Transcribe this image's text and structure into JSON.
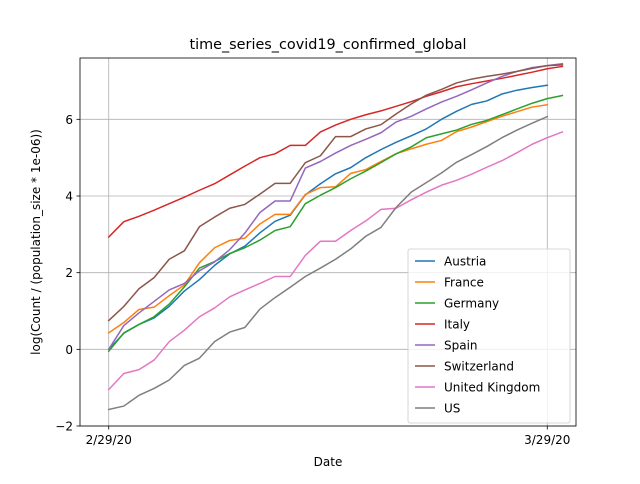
{
  "chart_data": {
    "type": "line",
    "title": "time_series_covid19_confirmed_global",
    "xlabel": "Date",
    "ylabel": "log(Count /  (population_size * 1e-06))",
    "x_tick_labels": [
      {
        "day": 0,
        "label": "2/29/20"
      },
      {
        "day": 29,
        "label": "3/29/20"
      }
    ],
    "xlim": [
      -1.9,
      30.9
    ],
    "ylim": [
      -2.0,
      7.6
    ],
    "yticks": [
      -2,
      0,
      2,
      4,
      6
    ],
    "grid": true,
    "legend_position": "lower-right",
    "colors": {
      "axes": "#000000",
      "grid": "#b0b0b0",
      "background": "#ffffff"
    },
    "series": [
      {
        "name": "Austria",
        "color": "#1f77b4",
        "values": [
          0.0,
          0.42,
          0.65,
          0.82,
          1.12,
          1.52,
          1.82,
          2.19,
          2.49,
          2.69,
          3.04,
          3.34,
          3.5,
          4.03,
          4.32,
          4.58,
          4.74,
          5.0,
          5.21,
          5.4,
          5.57,
          5.75,
          6.0,
          6.21,
          6.39,
          6.48,
          6.66,
          6.76,
          6.83,
          6.89
        ]
      },
      {
        "name": "France",
        "color": "#ff7f0e",
        "values": [
          0.43,
          0.7,
          1.04,
          1.1,
          1.4,
          1.68,
          2.26,
          2.65,
          2.84,
          2.9,
          3.27,
          3.52,
          3.52,
          4.04,
          4.22,
          4.24,
          4.59,
          4.69,
          4.9,
          5.1,
          5.23,
          5.35,
          5.45,
          5.68,
          5.8,
          5.94,
          6.08,
          6.2,
          6.32,
          6.38
        ]
      },
      {
        "name": "Germany",
        "color": "#2ca02c",
        "values": [
          -0.05,
          0.43,
          0.65,
          0.85,
          1.18,
          1.63,
          2.12,
          2.29,
          2.5,
          2.65,
          2.85,
          3.1,
          3.2,
          3.8,
          4.02,
          4.22,
          4.45,
          4.65,
          4.87,
          5.1,
          5.28,
          5.52,
          5.62,
          5.72,
          5.87,
          5.97,
          6.12,
          6.27,
          6.42,
          6.54,
          6.62
        ]
      },
      {
        "name": "Italy",
        "color": "#d62728",
        "values": [
          2.93,
          3.33,
          3.47,
          3.63,
          3.8,
          3.97,
          4.15,
          4.32,
          4.55,
          4.78,
          5.0,
          5.1,
          5.32,
          5.32,
          5.67,
          5.85,
          6.0,
          6.12,
          6.22,
          6.34,
          6.46,
          6.6,
          6.72,
          6.85,
          6.93,
          7.0,
          7.07,
          7.15,
          7.23,
          7.32,
          7.38
        ]
      },
      {
        "name": "Spain",
        "color": "#9467bd",
        "values": [
          0.0,
          0.62,
          0.95,
          1.25,
          1.55,
          1.72,
          2.05,
          2.28,
          2.6,
          3.03,
          3.57,
          3.87,
          3.87,
          4.73,
          4.9,
          5.12,
          5.32,
          5.48,
          5.65,
          5.93,
          6.08,
          6.27,
          6.45,
          6.6,
          6.77,
          6.95,
          7.12,
          7.25,
          7.35,
          7.4,
          7.45
        ]
      },
      {
        "name": "Switzerland",
        "color": "#8c564b",
        "values": [
          0.75,
          1.12,
          1.58,
          1.87,
          2.35,
          2.57,
          3.2,
          3.45,
          3.68,
          3.78,
          4.05,
          4.33,
          4.33,
          4.87,
          5.05,
          5.55,
          5.55,
          5.75,
          5.86,
          6.14,
          6.4,
          6.63,
          6.78,
          6.95,
          7.05,
          7.12,
          7.18,
          7.25,
          7.33,
          7.4,
          7.42
        ]
      },
      {
        "name": "United Kingdom",
        "color": "#e377c2",
        "values": [
          -1.05,
          -0.63,
          -0.53,
          -0.28,
          0.2,
          0.5,
          0.85,
          1.08,
          1.37,
          1.55,
          1.72,
          1.9,
          1.9,
          2.45,
          2.82,
          2.82,
          3.1,
          3.35,
          3.65,
          3.68,
          3.9,
          4.1,
          4.28,
          4.41,
          4.57,
          4.75,
          4.92,
          5.13,
          5.35,
          5.52,
          5.67
        ]
      },
      {
        "name": "US",
        "color": "#7f7f7f",
        "values": [
          -1.57,
          -1.48,
          -1.2,
          -1.02,
          -0.8,
          -0.42,
          -0.23,
          0.2,
          0.45,
          0.57,
          1.05,
          1.35,
          1.62,
          1.9,
          2.12,
          2.35,
          2.62,
          2.95,
          3.18,
          3.7,
          4.1,
          4.35,
          4.6,
          4.88,
          5.08,
          5.29,
          5.52,
          5.72,
          5.9,
          6.07
        ]
      }
    ]
  }
}
